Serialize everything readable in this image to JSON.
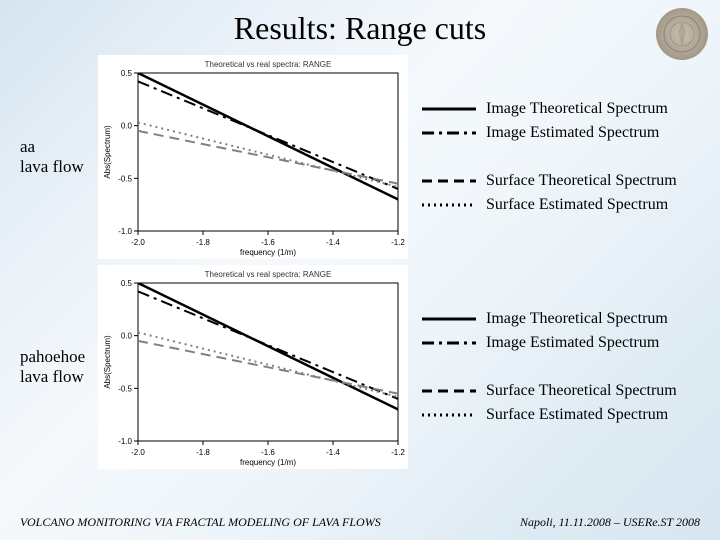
{
  "title": "Results: Range cuts",
  "rows": [
    {
      "label_line1": "aa",
      "label_line2": "lava flow"
    },
    {
      "label_line1": "pahoehoe",
      "label_line2": "lava flow"
    }
  ],
  "chart": {
    "type": "line",
    "title_text": "Theoretical vs real spectra: RANGE",
    "xlabel": "frequency (1/m)",
    "ylabel": "Abs(Spectrum)",
    "xlim": [
      -2.0,
      -1.2
    ],
    "ylim": [
      -1.0,
      0.5
    ],
    "xticks": [
      -2.0,
      -1.8,
      -1.6,
      -1.4,
      -1.2
    ],
    "yticks": [
      -1.0,
      -0.5,
      0.0,
      0.5
    ],
    "background_color": "#ffffff",
    "axis_color": "#000000",
    "tick_font_size": 8,
    "label_font_size": 8,
    "title_font_size": 8,
    "series": {
      "img_theoretical": {
        "style": "solid",
        "color": "#000000",
        "width": 2.5,
        "points": [
          [
            -2.0,
            0.5
          ],
          [
            -1.2,
            -0.7
          ]
        ]
      },
      "img_estimated": {
        "style": "dashdot",
        "color": "#000000",
        "width": 2,
        "points": [
          [
            -2.0,
            0.42
          ],
          [
            -1.2,
            -0.6
          ]
        ]
      },
      "surf_theoretical": {
        "style": "dash",
        "color": "#808080",
        "width": 2,
        "points": [
          [
            -2.0,
            -0.05
          ],
          [
            -1.2,
            -0.55
          ]
        ]
      },
      "surf_estimated": {
        "style": "dot",
        "color": "#808080",
        "width": 2,
        "points": [
          [
            -2.0,
            0.03
          ],
          [
            -1.2,
            -0.58
          ]
        ]
      }
    }
  },
  "legend_groups": [
    [
      {
        "label": "Image Theoretical Spectrum",
        "style": "solid",
        "color": "#000000",
        "width": 3
      },
      {
        "label": "Image Estimated Spectrum",
        "style": "dashdot",
        "color": "#000000",
        "width": 3
      }
    ],
    [
      {
        "label": "Surface Theoretical Spectrum",
        "style": "dash",
        "color": "#000000",
        "width": 3
      },
      {
        "label": "Surface Estimated Spectrum",
        "style": "dot",
        "color": "#000000",
        "width": 3
      }
    ]
  ],
  "footer": {
    "left": "VOLCANO MONITORING VIA FRACTAL MODELING OF LAVA FLOWS",
    "right": "Napoli, 11.11.2008 – USERe.ST 2008"
  }
}
